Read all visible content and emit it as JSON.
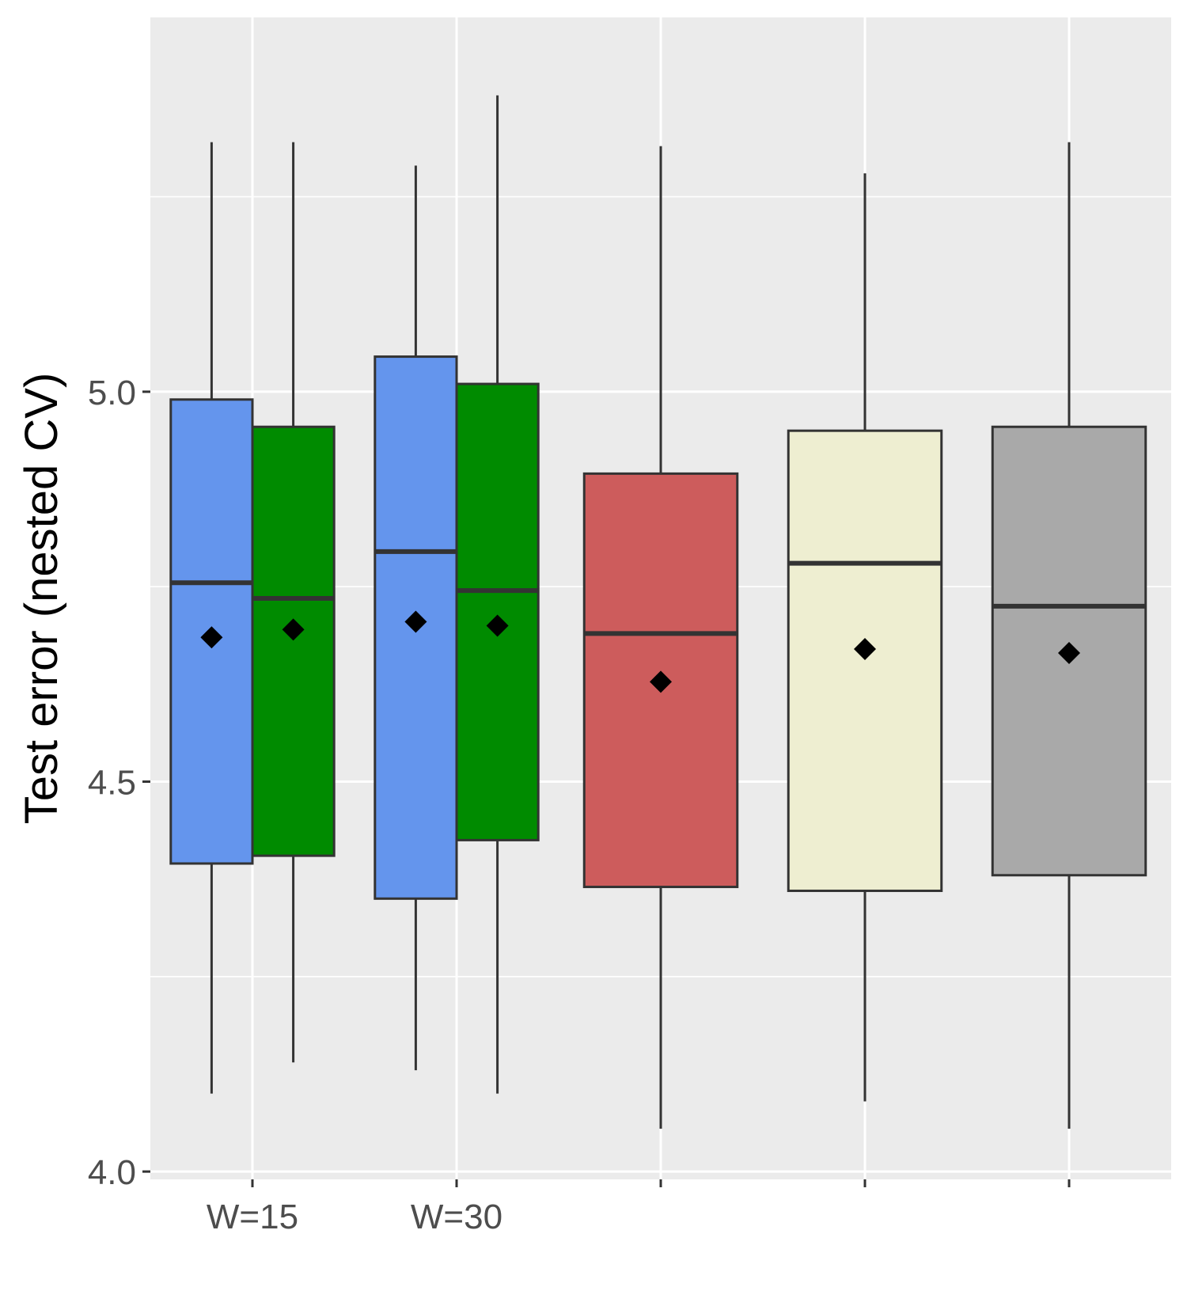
{
  "chart_data": {
    "type": "box",
    "title": "",
    "xlabel": "",
    "ylabel": "Test error (nested CV)",
    "ylim": [
      3.99,
      5.48
    ],
    "yticks": [
      "4.0",
      "4.5",
      "5.0"
    ],
    "ytick_values": [
      4.0,
      4.5,
      5.0
    ],
    "categories": [
      "W=15",
      "W=30",
      "",
      "",
      ""
    ],
    "grid": true,
    "legend": "none",
    "colors": {
      "panel": "#ebebeb",
      "grid": "#ffffff",
      "box_stroke": "#333333",
      "mean_marker": "#000000"
    },
    "boxes": [
      {
        "category": 0,
        "slot": 0,
        "slots": 2,
        "fill": "#6495ed",
        "whisker_low": 4.1,
        "q1": 4.395,
        "median": 4.755,
        "q3": 4.99,
        "whisker_high": 5.32,
        "mean": 4.685
      },
      {
        "category": 0,
        "slot": 1,
        "slots": 2,
        "fill": "#008b00",
        "whisker_low": 4.14,
        "q1": 4.405,
        "median": 4.735,
        "q3": 4.955,
        "whisker_high": 5.32,
        "mean": 4.695
      },
      {
        "category": 1,
        "slot": 0,
        "slots": 2,
        "fill": "#6495ed",
        "whisker_low": 4.13,
        "q1": 4.35,
        "median": 4.795,
        "q3": 5.045,
        "whisker_high": 5.29,
        "mean": 4.705
      },
      {
        "category": 1,
        "slot": 1,
        "slots": 2,
        "fill": "#008b00",
        "whisker_low": 4.1,
        "q1": 4.425,
        "median": 4.745,
        "q3": 5.01,
        "whisker_high": 5.38,
        "mean": 4.7
      },
      {
        "category": 2,
        "slot": 0,
        "slots": 1,
        "fill": "#cd5c5c",
        "whisker_low": 4.055,
        "q1": 4.365,
        "median": 4.69,
        "q3": 4.895,
        "whisker_high": 5.315,
        "mean": 4.628
      },
      {
        "category": 3,
        "slot": 0,
        "slots": 1,
        "fill": "#eeeed1",
        "whisker_low": 4.09,
        "q1": 4.36,
        "median": 4.78,
        "q3": 4.95,
        "whisker_high": 5.28,
        "mean": 4.67
      },
      {
        "category": 4,
        "slot": 0,
        "slots": 1,
        "fill": "#a9a9a9",
        "whisker_low": 4.055,
        "q1": 4.38,
        "median": 4.725,
        "q3": 4.955,
        "whisker_high": 5.32,
        "mean": 4.665
      }
    ]
  }
}
